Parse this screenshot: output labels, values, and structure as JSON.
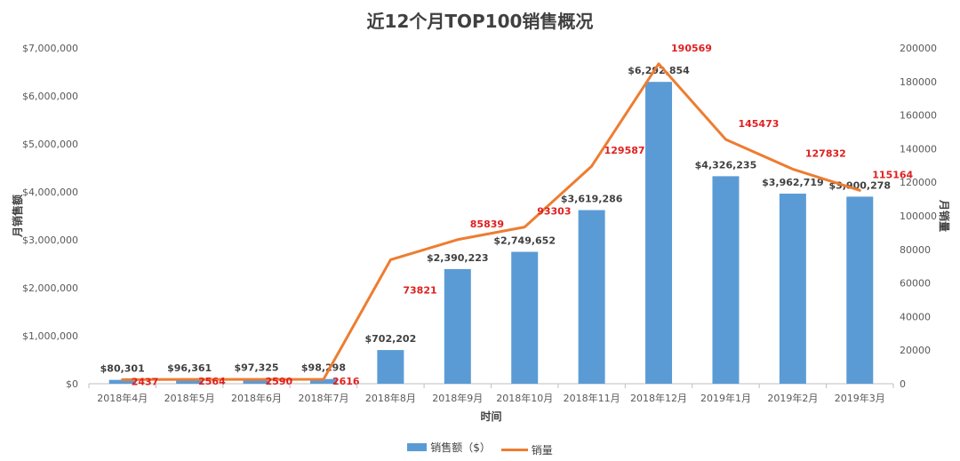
{
  "chart_data": {
    "type": "bar+line",
    "title": "近12个月TOP100销售概况",
    "xlabel": "时间",
    "ylabel_left": "月销售额",
    "ylabel_right": "月销量",
    "categories": [
      "2018年4月",
      "2018年5月",
      "2018年6月",
      "2018年7月",
      "2018年8月",
      "2018年9月",
      "2018年10月",
      "2018年11月",
      "2018年12月",
      "2019年1月",
      "2019年2月",
      "2019年3月"
    ],
    "series": [
      {
        "name": "销售额（$）",
        "type": "bar",
        "axis": "left",
        "color": "#5B9BD5",
        "values": [
          80301,
          96361,
          97325,
          98298,
          702202,
          2390223,
          2749652,
          3619286,
          6292854,
          4326235,
          3962719,
          3900278
        ],
        "labels": [
          "$80,301",
          "$96,361",
          "$97,325",
          "$98,298",
          "$702,202",
          "$2,390,223",
          "$2,749,652",
          "$3,619,286",
          "$6,292,854",
          "$4,326,235",
          "$3,962,719",
          "$3,900,278"
        ]
      },
      {
        "name": "销量",
        "type": "line",
        "axis": "right",
        "color": "#ED7D31",
        "values": [
          2437,
          2564,
          2590,
          2616,
          73821,
          85839,
          93303,
          129587,
          190569,
          145473,
          127832,
          115164
        ],
        "labels": [
          "2437",
          "2564",
          "2590",
          "2616",
          "73821",
          "85839",
          "93303",
          "129587",
          "190569",
          "145473",
          "127832",
          "115164"
        ]
      }
    ],
    "ylim_left": [
      0,
      7000000
    ],
    "yticks_left": [
      "$0",
      "$1,000,000",
      "$2,000,000",
      "$3,000,000",
      "$4,000,000",
      "$5,000,000",
      "$6,000,000",
      "$7,000,000"
    ],
    "ylim_right": [
      0,
      200000
    ],
    "yticks_right": [
      "0",
      "20000",
      "40000",
      "60000",
      "80000",
      "100000",
      "120000",
      "140000",
      "160000",
      "180000",
      "200000"
    ],
    "grid": false,
    "legend_position": "bottom",
    "line_label_color": "#E02020"
  }
}
